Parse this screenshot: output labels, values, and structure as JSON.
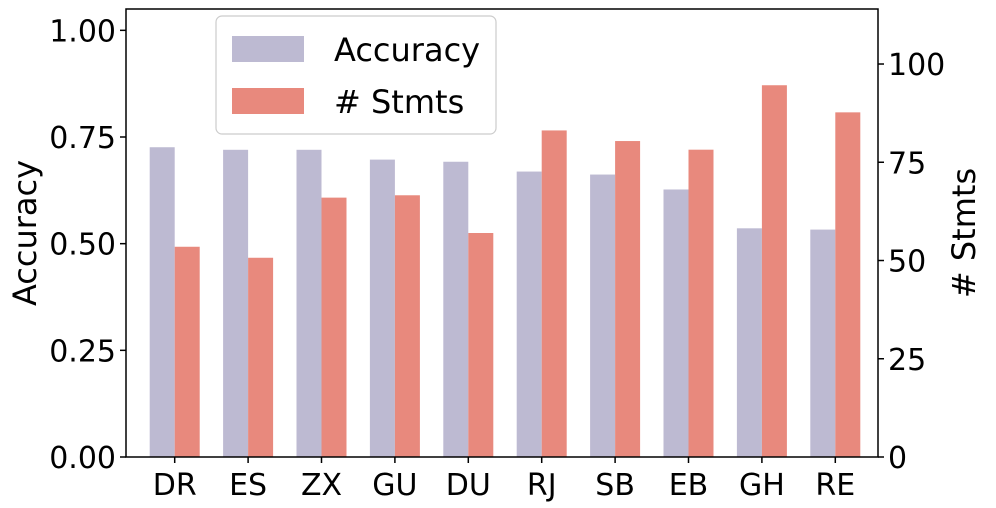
{
  "chart_data": {
    "type": "bar",
    "categories": [
      "DR",
      "ES",
      "ZX",
      "GU",
      "DU",
      "RJ",
      "SB",
      "EB",
      "GH",
      "RE"
    ],
    "series": [
      {
        "name": "Accuracy",
        "axis": "left",
        "color": "#bdbad2",
        "values": [
          0.726,
          0.72,
          0.72,
          0.697,
          0.692,
          0.669,
          0.662,
          0.627,
          0.536,
          0.533
        ]
      },
      {
        "name": "# Stmts",
        "axis": "right",
        "color": "#e8897d",
        "values": [
          53.5,
          50.7,
          66.0,
          66.6,
          57.0,
          83.1,
          80.4,
          78.2,
          94.6,
          87.7
        ]
      }
    ],
    "ylabel": "Accuracy",
    "ylabel_right": "# Stmts",
    "ylim": [
      0,
      1.05
    ],
    "ylim_right": [
      0,
      114
    ],
    "yticks": [
      "0.00",
      "0.25",
      "0.50",
      "0.75",
      "1.00"
    ],
    "yticks_right": [
      "0",
      "25",
      "50",
      "75",
      "100"
    ],
    "legend_position": "top-left",
    "grid": false
  }
}
